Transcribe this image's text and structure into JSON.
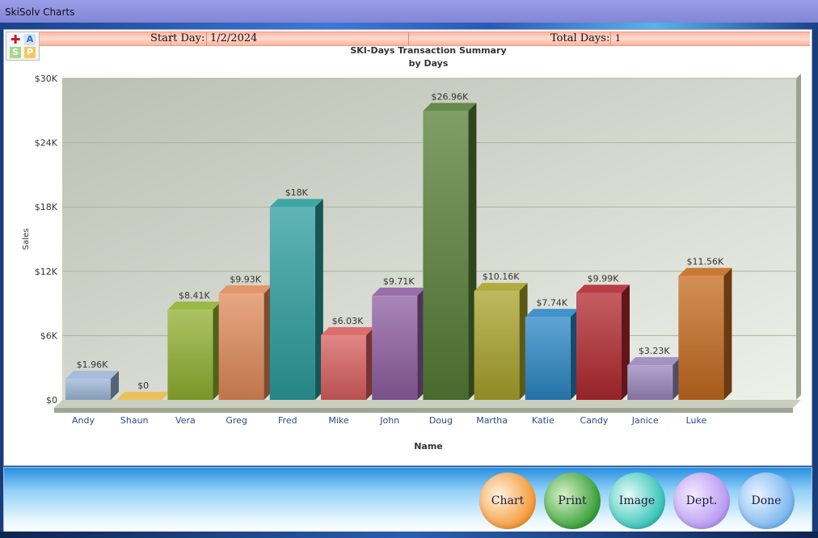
{
  "window": {
    "title": "SkiSolv Charts"
  },
  "info_bar": {
    "start_day_label": "Start Day:",
    "start_day_value": "1/2/2024",
    "total_days_label": "Total Days:",
    "total_days_value": "1"
  },
  "toolbar_icons": [
    "add-icon",
    "font-icon",
    "save-icon",
    "print-icon"
  ],
  "buttons": {
    "chart": "Chart",
    "print": "Print",
    "image": "Image",
    "dept": "Dept.",
    "done": "Done"
  },
  "chart_data": {
    "type": "bar",
    "title": "SKI-Days Transaction Summary",
    "subtitle": "by Days",
    "xlabel": "Name",
    "ylabel": "Sales",
    "ylim": [
      0,
      30000
    ],
    "yticks": [
      "$0",
      "$6K",
      "$12K",
      "$18K",
      "$24K",
      "$30K"
    ],
    "grid": true,
    "categories": [
      "Andy",
      "Shaun",
      "Vera",
      "Greg",
      "Fred",
      "Mike",
      "John",
      "Doug",
      "Martha",
      "Katie",
      "Candy",
      "Janice",
      "Luke"
    ],
    "values": [
      1960,
      0,
      8410,
      9930,
      18000,
      6030,
      9710,
      26960,
      10160,
      7740,
      9990,
      3230,
      11560
    ],
    "labels": [
      "$1.96K",
      "$0",
      "$8.41K",
      "$9.93K",
      "$18K",
      "$6.03K",
      "$9.71K",
      "$26.96K",
      "$10.16K",
      "$7.74K",
      "$9.99K",
      "$3.23K",
      "$11.56K"
    ],
    "colors": [
      "#9db6d8",
      "#e9b94a",
      "#8fb02f",
      "#e08a58",
      "#2a9c9c",
      "#d85e5e",
      "#8e5ea0",
      "#557d36",
      "#a8a22a",
      "#2a86c4",
      "#b0282e",
      "#9a86bc",
      "#c46a1e"
    ]
  }
}
